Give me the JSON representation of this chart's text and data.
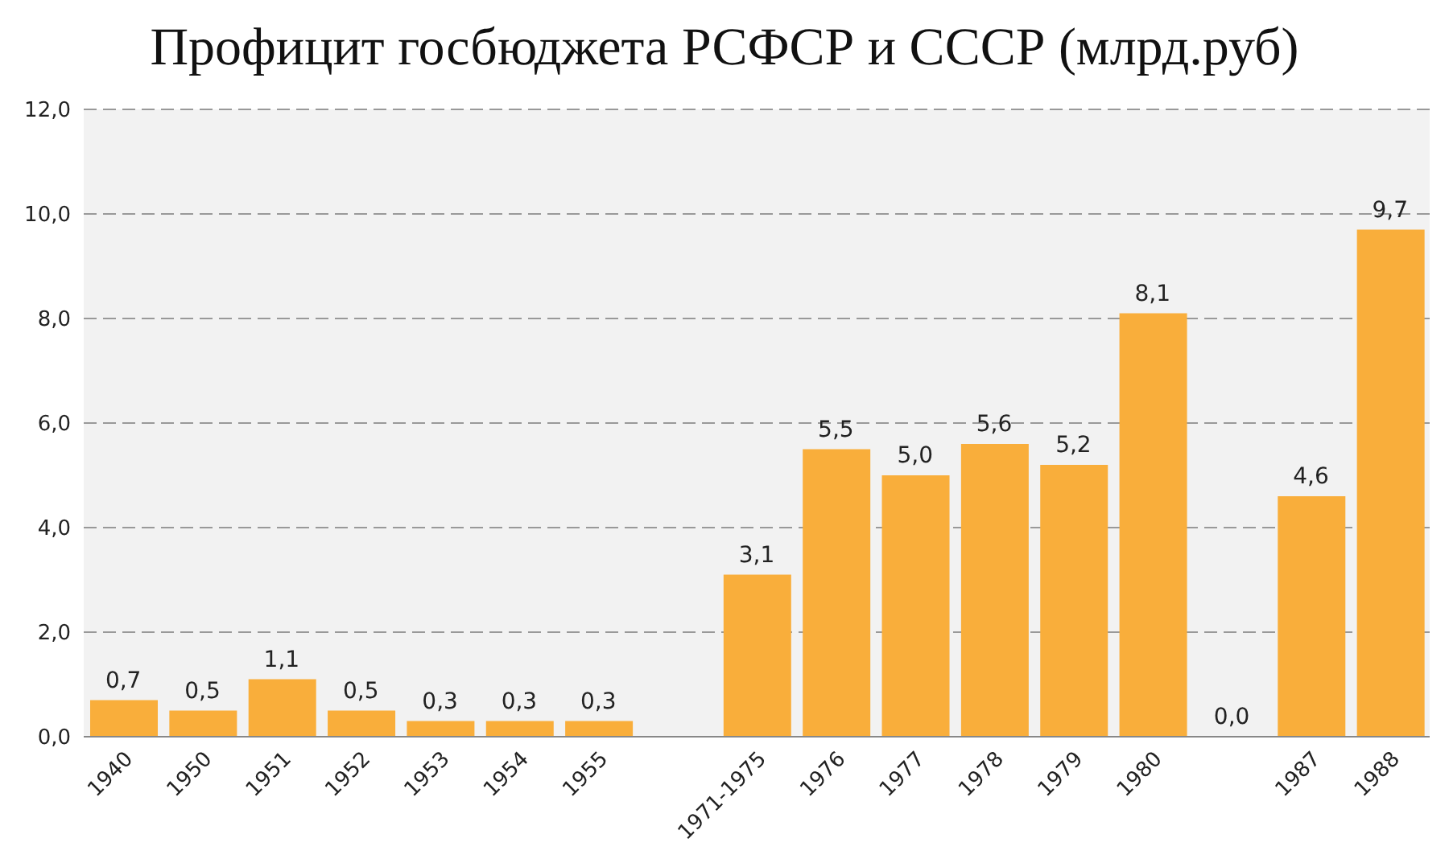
{
  "chart_data": {
    "type": "bar",
    "title": "Профицит госбюджета РСФСР и СССР (млрд.руб)",
    "categories": [
      "1940",
      "1950",
      "1951",
      "1952",
      "1953",
      "1954",
      "1955",
      null,
      "1971-1975",
      "1976",
      "1977",
      "1978",
      "1979",
      "1980",
      null,
      "1987",
      "1988"
    ],
    "values": [
      0.7,
      0.5,
      1.1,
      0.5,
      0.3,
      0.3,
      0.3,
      null,
      3.1,
      5.5,
      5.0,
      5.6,
      5.2,
      8.1,
      0.0,
      4.6,
      9.7
    ],
    "value_labels": [
      "0,7",
      "0,5",
      "1,1",
      "0,5",
      "0,3",
      "0,3",
      "0,3",
      null,
      "3,1",
      "5,5",
      "5,0",
      "5,6",
      "5,2",
      "8,1",
      "0,0",
      "4,6",
      "9,7"
    ],
    "color": "#f9ae3b",
    "ylim": [
      0,
      12
    ],
    "yticks": [
      {
        "value": 0,
        "label": "0,0"
      },
      {
        "value": 2,
        "label": "2,0"
      },
      {
        "value": 4,
        "label": "4,0"
      },
      {
        "value": 6,
        "label": "6,0"
      },
      {
        "value": 8,
        "label": "8,0"
      },
      {
        "value": 10,
        "label": "10,0"
      },
      {
        "value": 12,
        "label": "12,0"
      }
    ],
    "grid": "y",
    "legend": false
  }
}
